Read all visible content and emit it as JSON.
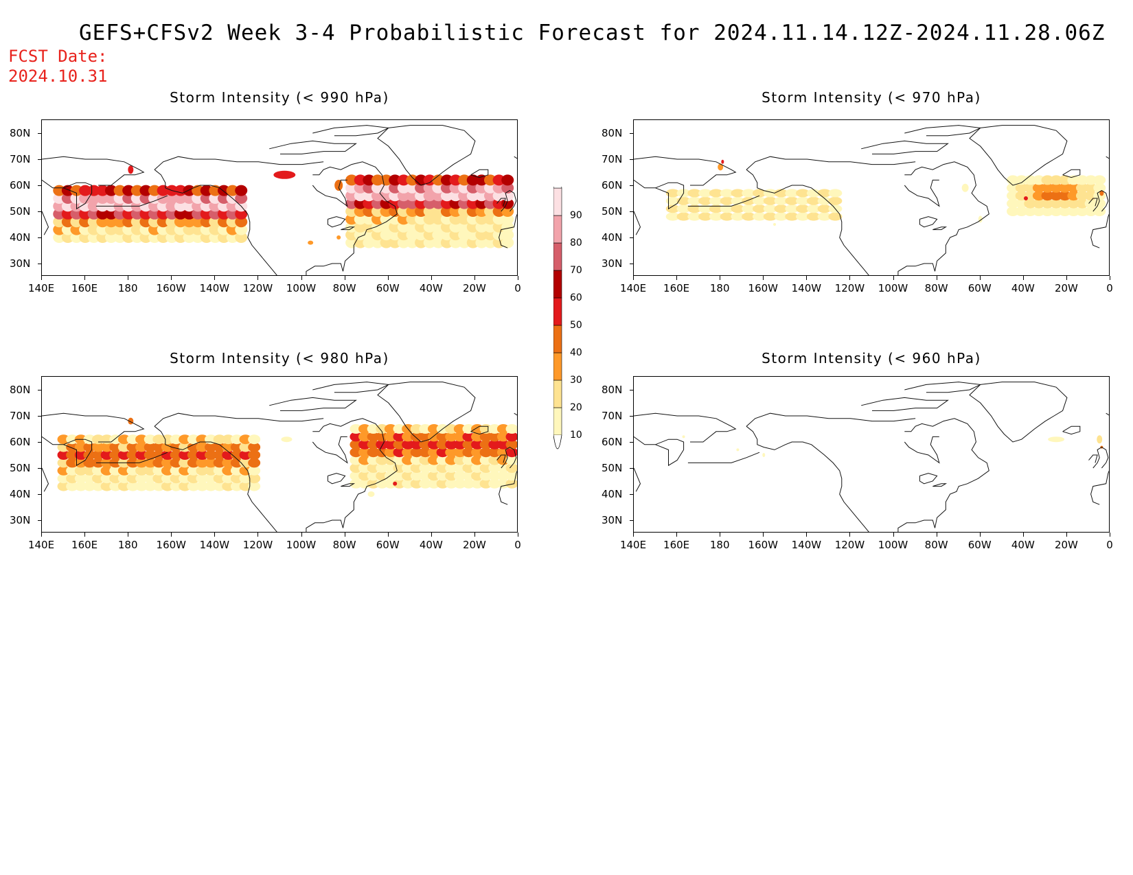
{
  "title": "GEFS+CFSv2 Week 3-4 Probabilistic Forecast for 2024.11.14.12Z-2024.11.28.06Z",
  "fcst_label": "FCST Date:",
  "fcst_date": "2024.10.31",
  "lat_ticks": [
    "80N",
    "70N",
    "60N",
    "50N",
    "40N",
    "30N"
  ],
  "lon_ticks": [
    "140E",
    "160E",
    "180",
    "160W",
    "140W",
    "120W",
    "100W",
    "80W",
    "60W",
    "40W",
    "20W",
    "0"
  ],
  "panels": [
    {
      "id": "p990",
      "title": "Storm Intensity (< 990 hPa)"
    },
    {
      "id": "p970",
      "title": "Storm Intensity (< 970 hPa)"
    },
    {
      "id": "p980",
      "title": "Storm Intensity (< 980 hPa)"
    },
    {
      "id": "p960",
      "title": "Storm Intensity (< 960 hPa)"
    }
  ],
  "colorbar": {
    "levels": [
      "10",
      "20",
      "30",
      "40",
      "50",
      "60",
      "70",
      "80",
      "90"
    ],
    "colors": [
      "#fff7bc",
      "#fee391",
      "#fe9929",
      "#ec7014",
      "#e31a1c",
      "#b30000",
      "#d65e6a",
      "#f2a3ab",
      "#fce0e3",
      "#ffffff"
    ]
  }
}
